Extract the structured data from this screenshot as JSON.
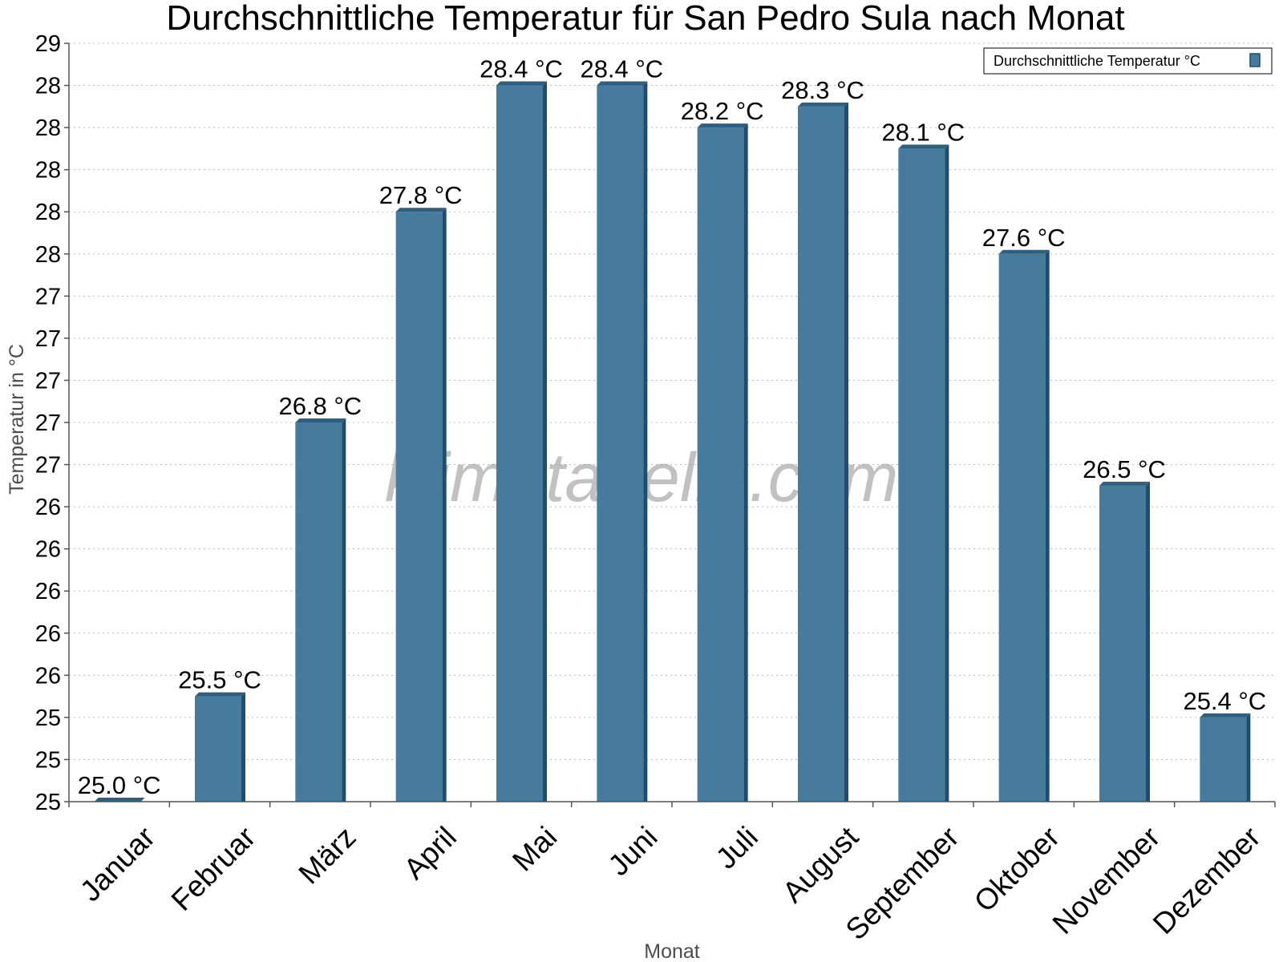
{
  "chart_data": {
    "type": "bar",
    "title": "Durchschnittliche Temperatur für San Pedro Sula nach Monat",
    "xlabel": "Monat",
    "ylabel": "Temperatur in °C",
    "categories": [
      "Januar",
      "Februar",
      "März",
      "April",
      "Mai",
      "Juni",
      "Juli",
      "August",
      "September",
      "Oktober",
      "November",
      "Dezember"
    ],
    "series": [
      {
        "name": "Durchschnittliche Temperatur °C",
        "values": [
          25.0,
          25.5,
          26.8,
          27.8,
          28.4,
          28.4,
          28.2,
          28.3,
          28.1,
          27.6,
          26.5,
          25.4
        ],
        "labels": [
          "25.0 °C",
          "25.5 °C",
          "26.8 °C",
          "27.8 °C",
          "28.4 °C",
          "28.4 °C",
          "28.2 °C",
          "28.3 °C",
          "28.1 °C",
          "27.6 °C",
          "26.5 °C",
          "25.4 °C"
        ]
      }
    ],
    "ylim": [
      25.0,
      28.6
    ],
    "ytick_values": [
      25.0,
      25.2,
      25.4,
      25.6,
      25.8,
      26.0,
      26.2,
      26.4,
      26.6,
      26.8,
      27.0,
      27.2,
      27.4,
      27.6,
      27.8,
      28.0,
      28.2,
      28.4,
      28.6
    ],
    "ytick_labels": [
      "25",
      "25",
      "25",
      "26",
      "26",
      "26",
      "26",
      "26",
      "27",
      "27",
      "27",
      "27",
      "27",
      "28",
      "28",
      "28",
      "28",
      "28",
      "29"
    ],
    "grid": true,
    "legend_position": "top-right",
    "watermark": "klimatabelle.com",
    "colors": {
      "bar": "#467b9d",
      "bar_side": "#1e4d6e",
      "bar_top": "#2c5f80",
      "grid": "#bbbbbb",
      "axis": "#555555"
    }
  }
}
